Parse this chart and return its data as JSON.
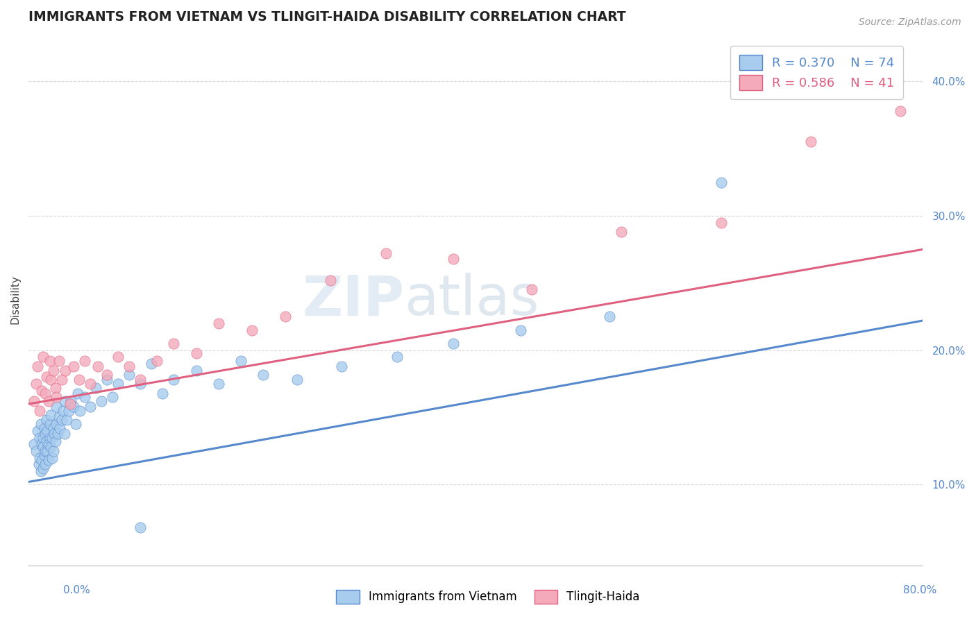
{
  "title": "IMMIGRANTS FROM VIETNAM VS TLINGIT-HAIDA DISABILITY CORRELATION CHART",
  "source": "Source: ZipAtlas.com",
  "ylabel": "Disability",
  "yticks": [
    0.1,
    0.2,
    0.3,
    0.4
  ],
  "ytick_labels": [
    "10.0%",
    "20.0%",
    "30.0%",
    "40.0%"
  ],
  "xlim": [
    0.0,
    0.8
  ],
  "ylim": [
    0.04,
    0.435
  ],
  "legend_blue_r": "R = 0.370",
  "legend_blue_n": "N = 74",
  "legend_pink_r": "R = 0.586",
  "legend_pink_n": "N = 41",
  "blue_color": "#A8CCEE",
  "pink_color": "#F4AABB",
  "blue_line_color": "#5588CC",
  "pink_line_color": "#E06080",
  "watermark_zip": "ZIP",
  "watermark_atlas": "atlas",
  "scatter_blue_x": [
    0.005,
    0.007,
    0.008,
    0.009,
    0.01,
    0.01,
    0.011,
    0.011,
    0.012,
    0.012,
    0.013,
    0.013,
    0.013,
    0.014,
    0.014,
    0.015,
    0.015,
    0.015,
    0.016,
    0.016,
    0.017,
    0.017,
    0.018,
    0.018,
    0.019,
    0.019,
    0.02,
    0.02,
    0.021,
    0.021,
    0.022,
    0.022,
    0.023,
    0.024,
    0.025,
    0.025,
    0.026,
    0.027,
    0.028,
    0.03,
    0.031,
    0.032,
    0.033,
    0.034,
    0.036,
    0.038,
    0.04,
    0.042,
    0.044,
    0.046,
    0.05,
    0.055,
    0.06,
    0.065,
    0.07,
    0.075,
    0.08,
    0.09,
    0.1,
    0.11,
    0.12,
    0.13,
    0.15,
    0.17,
    0.19,
    0.21,
    0.24,
    0.28,
    0.33,
    0.38,
    0.44,
    0.52,
    0.62,
    0.1
  ],
  "scatter_blue_y": [
    0.13,
    0.125,
    0.14,
    0.115,
    0.12,
    0.135,
    0.11,
    0.145,
    0.13,
    0.118,
    0.135,
    0.128,
    0.112,
    0.142,
    0.122,
    0.138,
    0.125,
    0.115,
    0.132,
    0.148,
    0.125,
    0.14,
    0.13,
    0.118,
    0.135,
    0.145,
    0.128,
    0.152,
    0.135,
    0.12,
    0.142,
    0.125,
    0.138,
    0.132,
    0.145,
    0.158,
    0.138,
    0.15,
    0.142,
    0.148,
    0.155,
    0.138,
    0.162,
    0.148,
    0.155,
    0.162,
    0.158,
    0.145,
    0.168,
    0.155,
    0.165,
    0.158,
    0.172,
    0.162,
    0.178,
    0.165,
    0.175,
    0.182,
    0.175,
    0.19,
    0.168,
    0.178,
    0.185,
    0.175,
    0.192,
    0.182,
    0.178,
    0.188,
    0.195,
    0.205,
    0.215,
    0.225,
    0.325,
    0.068
  ],
  "scatter_pink_x": [
    0.005,
    0.007,
    0.008,
    0.01,
    0.012,
    0.013,
    0.015,
    0.016,
    0.018,
    0.019,
    0.02,
    0.022,
    0.024,
    0.025,
    0.027,
    0.03,
    0.033,
    0.037,
    0.04,
    0.045,
    0.05,
    0.055,
    0.062,
    0.07,
    0.08,
    0.09,
    0.1,
    0.115,
    0.13,
    0.15,
    0.17,
    0.2,
    0.23,
    0.27,
    0.32,
    0.38,
    0.45,
    0.53,
    0.62,
    0.7,
    0.78
  ],
  "scatter_pink_y": [
    0.162,
    0.175,
    0.188,
    0.155,
    0.17,
    0.195,
    0.168,
    0.18,
    0.162,
    0.192,
    0.178,
    0.185,
    0.172,
    0.165,
    0.192,
    0.178,
    0.185,
    0.16,
    0.188,
    0.178,
    0.192,
    0.175,
    0.188,
    0.182,
    0.195,
    0.188,
    0.178,
    0.192,
    0.205,
    0.198,
    0.22,
    0.215,
    0.225,
    0.252,
    0.272,
    0.268,
    0.245,
    0.288,
    0.295,
    0.355,
    0.378
  ],
  "blue_trendline_x": [
    0.0,
    0.8
  ],
  "blue_trendline_y": [
    0.102,
    0.222
  ],
  "pink_trendline_x": [
    0.0,
    0.8
  ],
  "pink_trendline_y": [
    0.16,
    0.275
  ],
  "background_color": "#FFFFFF",
  "grid_color": "#CCCCCC",
  "bottom_legend_labels": [
    "Immigrants from Vietnam",
    "Tlingit-Haida"
  ]
}
